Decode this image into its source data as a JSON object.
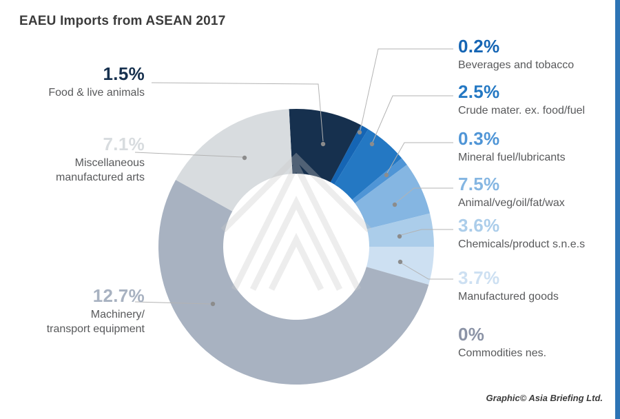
{
  "title": "EAEU Imports from ASEAN 2017",
  "credit": "Graphic© Asia Briefing Ltd.",
  "accent_bar_color": "#2d74b5",
  "label_text_color": "#58595b",
  "chart_data": {
    "type": "pie",
    "variant": "donut",
    "title": "EAEU Imports from ASEAN 2017",
    "unit": "%",
    "legend_position": "around",
    "start_angle_deg": -3,
    "segments": [
      {
        "id": "food",
        "label": "Food & live animals",
        "value": 1.5,
        "value_label": "1.5%",
        "color": "#16304e",
        "sweep_deg": 31
      },
      {
        "id": "beverages",
        "label": "Beverages and tobacco",
        "value": 0.2,
        "value_label": "0.2%",
        "color": "#1565b4",
        "sweep_deg": 3.5
      },
      {
        "id": "crude",
        "label": "Crude mater. ex. food/fuel",
        "value": 2.5,
        "value_label": "2.5%",
        "color": "#2478c3",
        "sweep_deg": 18.5
      },
      {
        "id": "mineral",
        "label": "Mineral fuel/lubricants",
        "value": 0.3,
        "value_label": "0.3%",
        "color": "#4f95d6",
        "sweep_deg": 3.5
      },
      {
        "id": "animal",
        "label": "Animal/veg/oil/fat/wax",
        "value": 7.5,
        "value_label": "7.5%",
        "color": "#85b6e2",
        "sweep_deg": 22.5
      },
      {
        "id": "chemicals",
        "label": "Chemicals/product s.n.e.s",
        "value": 3.6,
        "value_label": "3.6%",
        "color": "#abcdea",
        "sweep_deg": 14
      },
      {
        "id": "manufactured",
        "label": "Manufactured goods",
        "value": 3.7,
        "value_label": "3.7%",
        "color": "#cde0f2",
        "sweep_deg": 16
      },
      {
        "id": "commodities",
        "label": "Commodities nes.",
        "value": 0,
        "value_label": "0%",
        "color": "#8b93a6",
        "sweep_deg": 0
      },
      {
        "id": "machinery",
        "label": "Machinery/\ntransport equipment",
        "value": 12.7,
        "value_label": "12.7%",
        "color": "#a8b2c1",
        "sweep_deg": 193
      },
      {
        "id": "misc",
        "label": "Miscellaneous\nmanufactured arts",
        "value": 7.1,
        "value_label": "7.1%",
        "color": "#d8dcdf",
        "sweep_deg": 58
      }
    ]
  }
}
